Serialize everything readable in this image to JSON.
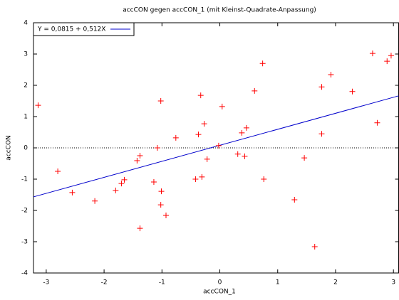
{
  "chart_data": {
    "type": "scatter",
    "title": "accCON gegen accCON_1 (mit Kleinst-Quadrate-Anpassung)",
    "x_label": "accCON_1",
    "y_label": "accCON",
    "x": [
      -3.14,
      -2.8,
      -2.55,
      -2.16,
      -1.8,
      -1.7,
      -1.65,
      -1.43,
      -1.38,
      -1.38,
      -1.14,
      -1.08,
      -1.02,
      -1.01,
      -1.02,
      -0.93,
      -0.76,
      -0.42,
      -0.37,
      -0.33,
      -0.31,
      -0.27,
      -0.22,
      -0.02,
      0.04,
      0.31,
      0.38,
      0.43,
      0.46,
      0.6,
      0.74,
      0.76,
      1.29,
      1.46,
      1.64,
      1.76,
      1.76,
      1.92,
      2.29,
      2.64,
      2.72,
      2.89,
      2.96
    ],
    "values": [
      1.36,
      -0.75,
      -1.43,
      -1.7,
      -1.36,
      -1.14,
      -1.02,
      -0.41,
      -0.25,
      -2.57,
      -1.09,
      0.0,
      1.5,
      -1.39,
      -1.82,
      -2.16,
      0.32,
      -1.0,
      0.43,
      1.68,
      -0.93,
      0.77,
      -0.36,
      0.07,
      1.32,
      -0.2,
      0.48,
      -0.27,
      0.64,
      1.82,
      2.7,
      -1.0,
      -1.66,
      -0.32,
      -3.16,
      0.45,
      1.95,
      2.34,
      1.8,
      3.02,
      0.8,
      2.77,
      2.95
    ],
    "color": "#ff0000",
    "fit": {
      "name": "Y = 0,0815 + 0,512X",
      "intercept": 0.0815,
      "slope": 0.512,
      "color": "#0000cc"
    },
    "xlim": [
      -3.22,
      3.09
    ],
    "ylim": [
      -4,
      4
    ],
    "xticks": [
      -3,
      -2,
      -1,
      0,
      1,
      2,
      3
    ],
    "yticks": [
      -4,
      -3,
      -2,
      -1,
      0,
      1,
      2,
      3,
      4
    ],
    "zero_line": true,
    "legend": "top-left"
  }
}
